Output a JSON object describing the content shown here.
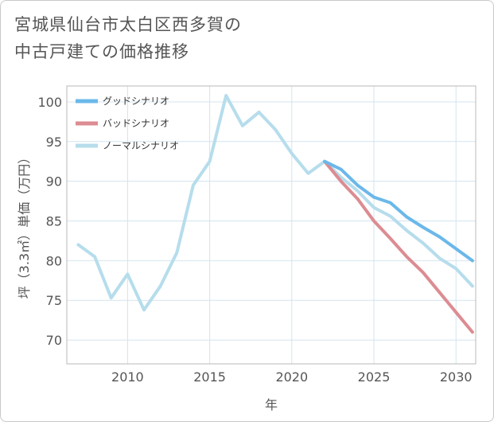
{
  "title_line1": "宮城県仙台市太白区西多賀の",
  "title_line2": "中古戸建ての価格推移",
  "chart_data": {
    "type": "line",
    "title": "宮城県仙台市太白区西多賀の中古戸建ての価格推移",
    "xlabel": "年",
    "ylabel": "坪（3.3㎡）単価（万円）",
    "xlim": [
      2006.3,
      2031.2
    ],
    "ylim": [
      67,
      102
    ],
    "xticks": [
      2010,
      2015,
      2020,
      2025,
      2030
    ],
    "yticks": [
      70,
      75,
      80,
      85,
      90,
      95,
      100
    ],
    "grid": true,
    "legend_position": "top-left",
    "series": [
      {
        "name": "グッドシナリオ",
        "color": "#6bb8ea",
        "x": [
          2022,
          2023,
          2024,
          2025,
          2026,
          2027,
          2028,
          2029,
          2030,
          2031
        ],
        "values": [
          92.5,
          91.5,
          89.5,
          88.0,
          87.3,
          85.5,
          84.2,
          83.0,
          81.5,
          80.0
        ]
      },
      {
        "name": "バッドシナリオ",
        "color": "#dc8c92",
        "x": [
          2022,
          2023,
          2024,
          2025,
          2026,
          2027,
          2028,
          2029,
          2030,
          2031
        ],
        "values": [
          92.5,
          90.0,
          87.8,
          85.0,
          82.8,
          80.5,
          78.5,
          76.0,
          73.5,
          71.0
        ]
      },
      {
        "name": "ノーマルシナリオ",
        "color": "#b6ddec",
        "x": [
          2007,
          2008,
          2009,
          2010,
          2011,
          2012,
          2013,
          2014,
          2015,
          2016,
          2017,
          2018,
          2019,
          2020,
          2021,
          2022,
          2023,
          2024,
          2025,
          2026,
          2027,
          2028,
          2029,
          2030,
          2031
        ],
        "values": [
          82.0,
          80.5,
          75.3,
          78.3,
          73.8,
          76.8,
          81.0,
          89.5,
          92.5,
          100.8,
          97.0,
          98.7,
          96.5,
          93.5,
          91.0,
          92.5,
          90.5,
          88.8,
          86.7,
          85.6,
          83.8,
          82.2,
          80.3,
          79.0,
          76.8
        ]
      }
    ]
  }
}
